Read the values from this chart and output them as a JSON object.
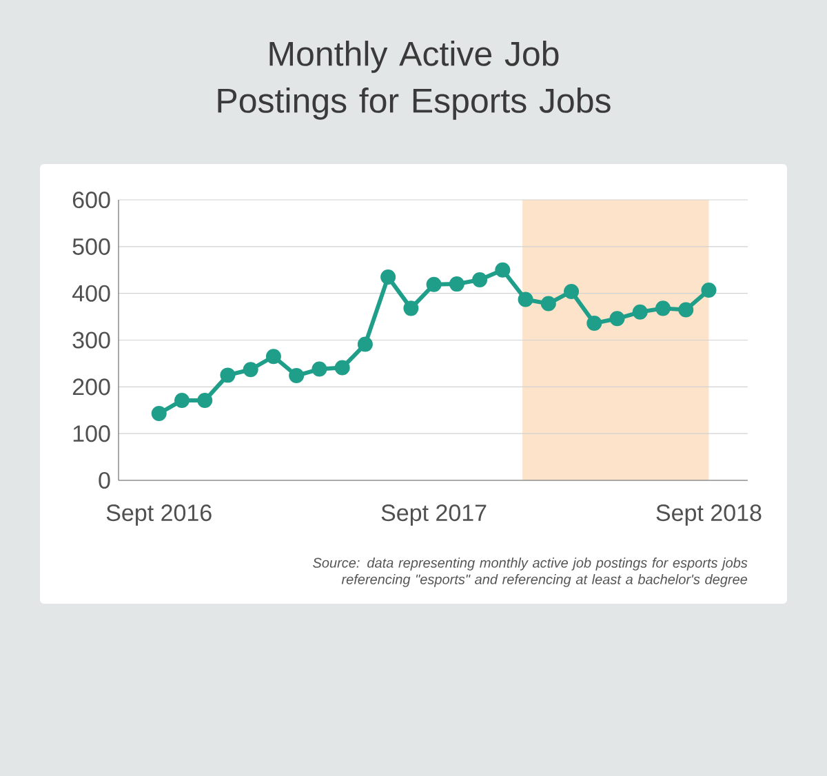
{
  "chart_data": {
    "type": "line",
    "title": "Monthly Active Job Postings for Esports Jobs",
    "x": [
      "2016-09",
      "2016-10",
      "2016-11",
      "2016-12",
      "2017-01",
      "2017-02",
      "2017-03",
      "2017-04",
      "2017-05",
      "2017-06",
      "2017-07",
      "2017-08",
      "2017-09",
      "2017-10",
      "2017-11",
      "2017-12",
      "2018-01",
      "2018-02",
      "2018-03",
      "2018-04",
      "2018-05",
      "2018-06",
      "2018-07",
      "2018-08",
      "2018-09"
    ],
    "series": [
      {
        "color": "#1f9e89",
        "values": [
          143,
          171,
          171,
          225,
          237,
          265,
          224,
          238,
          241,
          291,
          435,
          368,
          419,
          420,
          429,
          450,
          387,
          378,
          404,
          336,
          346,
          360,
          368,
          365,
          407
        ]
      }
    ],
    "xlim": [
      "2016-07-08",
      "2018-10-22"
    ],
    "xticks": [
      {
        "value": "2016-09",
        "label": "Sept 2016"
      },
      {
        "value": "2017-09",
        "label": "Sept 2017"
      },
      {
        "value": "2018-09",
        "label": "Sept 2018"
      }
    ],
    "ylim": [
      0,
      600
    ],
    "yticks": [
      0,
      100,
      200,
      300,
      400,
      500,
      600
    ],
    "grid": "y",
    "marker": "circle",
    "line_style": "solid",
    "bands": [
      {
        "axis": "x",
        "from": "2017-12-27",
        "to": "2018-09",
        "color": "#fde3c9"
      }
    ],
    "annotations": [
      "Source: data representing monthly active job postings for esports jobs referencing \"esports\" and referencing at least a bachelor's degree"
    ]
  }
}
